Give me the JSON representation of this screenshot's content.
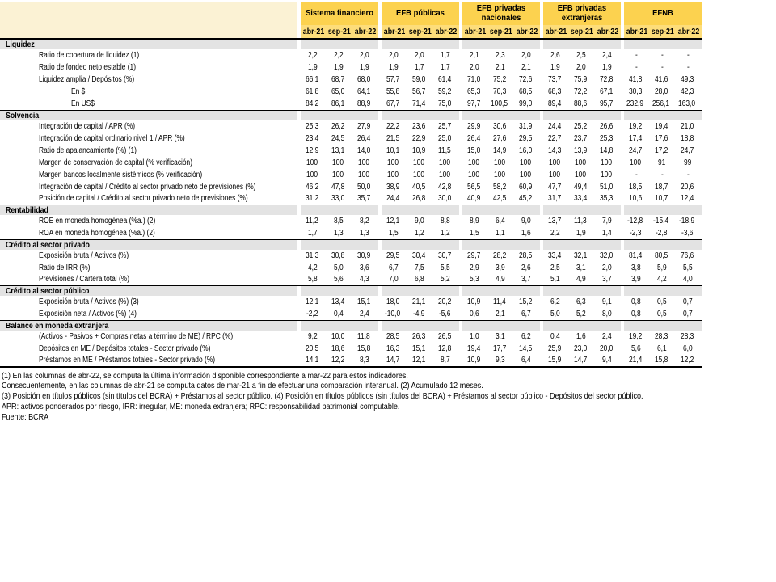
{
  "colors": {
    "header_gold": "#fcd24f",
    "header_gold_light": "#fddd7a",
    "corner_cream": "#fbf2d4",
    "section_gray": "#e3e3e3",
    "border_black": "#000000"
  },
  "table": {
    "groups": [
      {
        "label": "Sistema financiero"
      },
      {
        "label": "EFB públicas"
      },
      {
        "label": "EFB privadas nacionales"
      },
      {
        "label": "EFB privadas extranjeras"
      },
      {
        "label": "EFNB"
      }
    ],
    "periods": [
      "abr-21",
      "sep-21",
      "abr-22"
    ],
    "sections": [
      {
        "title": "Liquidez",
        "rows": [
          {
            "label": "Ratio de cobertura de liquidez (1)",
            "indent": 1,
            "values": [
              "2,2",
              "2,2",
              "2,0",
              "2,0",
              "2,0",
              "1,7",
              "2,1",
              "2,3",
              "2,0",
              "2,6",
              "2,5",
              "2,4",
              "-",
              "-",
              "-"
            ]
          },
          {
            "label": "Ratio de fondeo neto estable (1)",
            "indent": 1,
            "values": [
              "1,9",
              "1,9",
              "1,9",
              "1,9",
              "1,7",
              "1,7",
              "2,0",
              "2,1",
              "2,1",
              "1,9",
              "2,0",
              "1,9",
              "-",
              "-",
              "-"
            ]
          },
          {
            "label": "Liquidez amplia / Depósitos (%)",
            "indent": 1,
            "values": [
              "66,1",
              "68,7",
              "68,0",
              "57,7",
              "59,0",
              "61,4",
              "71,0",
              "75,2",
              "72,6",
              "73,7",
              "75,9",
              "72,8",
              "41,8",
              "41,6",
              "49,3"
            ]
          },
          {
            "label": "En $",
            "indent": 2,
            "values": [
              "61,8",
              "65,0",
              "64,1",
              "55,8",
              "56,7",
              "59,2",
              "65,3",
              "70,3",
              "68,5",
              "68,3",
              "72,2",
              "67,1",
              "30,3",
              "28,0",
              "42,3"
            ]
          },
          {
            "label": "En US$",
            "indent": 2,
            "values": [
              "84,2",
              "86,1",
              "88,9",
              "67,7",
              "71,4",
              "75,0",
              "97,7",
              "100,5",
              "99,0",
              "89,4",
              "88,6",
              "95,7",
              "232,9",
              "256,1",
              "163,0"
            ]
          }
        ]
      },
      {
        "title": "Solvencia",
        "rows": [
          {
            "label": "Integración de capital / APR (%)",
            "indent": 1,
            "values": [
              "25,3",
              "26,2",
              "27,9",
              "22,2",
              "23,6",
              "25,7",
              "29,9",
              "30,6",
              "31,9",
              "24,4",
              "25,2",
              "26,6",
              "19,2",
              "19,4",
              "21,0"
            ]
          },
          {
            "label": "Integración de capital ordinario nivel 1 / APR (%)",
            "indent": 1,
            "values": [
              "23,4",
              "24,5",
              "26,4",
              "21,5",
              "22,9",
              "25,0",
              "26,4",
              "27,6",
              "29,5",
              "22,7",
              "23,7",
              "25,3",
              "17,4",
              "17,6",
              "18,8"
            ]
          },
          {
            "label": "Ratio de apalancamiento (%) (1)",
            "indent": 1,
            "values": [
              "12,9",
              "13,1",
              "14,0",
              "10,1",
              "10,9",
              "11,5",
              "15,0",
              "14,9",
              "16,0",
              "14,3",
              "13,9",
              "14,8",
              "24,7",
              "17,2",
              "24,7"
            ]
          },
          {
            "label": "Margen de conservación de capital (% verificación)",
            "indent": 1,
            "values": [
              "100",
              "100",
              "100",
              "100",
              "100",
              "100",
              "100",
              "100",
              "100",
              "100",
              "100",
              "100",
              "100",
              "91",
              "99"
            ]
          },
          {
            "label": "Margen bancos localmente sistémicos (% verificación)",
            "indent": 1,
            "values": [
              "100",
              "100",
              "100",
              "100",
              "100",
              "100",
              "100",
              "100",
              "100",
              "100",
              "100",
              "100",
              "-",
              "-",
              "-"
            ]
          },
          {
            "label": "Integración de capital / Crédito al sector privado neto de previsiones (%)",
            "indent": 1,
            "values": [
              "46,2",
              "47,8",
              "50,0",
              "38,9",
              "40,5",
              "42,8",
              "56,5",
              "58,2",
              "60,9",
              "47,7",
              "49,4",
              "51,0",
              "18,5",
              "18,7",
              "20,6"
            ]
          },
          {
            "label": "Posición de capital / Crédito al sector privado neto de previsiones (%)",
            "indent": 1,
            "values": [
              "31,2",
              "33,0",
              "35,7",
              "24,4",
              "26,8",
              "30,0",
              "40,9",
              "42,5",
              "45,2",
              "31,7",
              "33,4",
              "35,3",
              "10,6",
              "10,7",
              "12,4"
            ]
          }
        ]
      },
      {
        "title": "Rentabilidad",
        "rows": [
          {
            "label": "ROE en moneda homogénea (%a.) (2)",
            "indent": 1,
            "values": [
              "11,2",
              "8,5",
              "8,2",
              "12,1",
              "9,0",
              "8,8",
              "8,9",
              "6,4",
              "9,0",
              "13,7",
              "11,3",
              "7,9",
              "-12,8",
              "-15,4",
              "-18,9"
            ]
          },
          {
            "label": "ROA en moneda homogénea (%a.) (2)",
            "indent": 1,
            "values": [
              "1,7",
              "1,3",
              "1,3",
              "1,5",
              "1,2",
              "1,2",
              "1,5",
              "1,1",
              "1,6",
              "2,2",
              "1,9",
              "1,4",
              "-2,3",
              "-2,8",
              "-3,6"
            ]
          }
        ]
      },
      {
        "title": "Crédito al sector privado",
        "rows": [
          {
            "label": "Exposición bruta / Activos (%)",
            "indent": 1,
            "values": [
              "31,3",
              "30,8",
              "30,9",
              "29,5",
              "30,4",
              "30,7",
              "29,7",
              "28,2",
              "28,5",
              "33,4",
              "32,1",
              "32,0",
              "81,4",
              "80,5",
              "76,6"
            ]
          },
          {
            "label": "Ratio de IRR (%)",
            "indent": 1,
            "values": [
              "4,2",
              "5,0",
              "3,6",
              "6,7",
              "7,5",
              "5,5",
              "2,9",
              "3,9",
              "2,6",
              "2,5",
              "3,1",
              "2,0",
              "3,8",
              "5,9",
              "5,5"
            ]
          },
          {
            "label": "Previsiones / Cartera total (%)",
            "indent": 1,
            "values": [
              "5,8",
              "5,6",
              "4,3",
              "7,0",
              "6,8",
              "5,2",
              "5,3",
              "4,9",
              "3,7",
              "5,1",
              "4,9",
              "3,7",
              "3,9",
              "4,2",
              "4,0"
            ]
          }
        ]
      },
      {
        "title": "Crédito al sector público",
        "rows": [
          {
            "label": "Exposición bruta / Activos (%) (3)",
            "indent": 1,
            "values": [
              "12,1",
              "13,4",
              "15,1",
              "18,0",
              "21,1",
              "20,2",
              "10,9",
              "11,4",
              "15,2",
              "6,2",
              "6,3",
              "9,1",
              "0,8",
              "0,5",
              "0,7"
            ]
          },
          {
            "label": "Exposición neta / Activos (%) (4)",
            "indent": 1,
            "values": [
              "-2,2",
              "0,4",
              "2,4",
              "-10,0",
              "-4,9",
              "-5,6",
              "0,6",
              "2,1",
              "6,7",
              "5,0",
              "5,2",
              "8,0",
              "0,8",
              "0,5",
              "0,7"
            ]
          }
        ]
      },
      {
        "title": "Balance en moneda extranjera",
        "rows": [
          {
            "label": "(Activos - Pasivos +  Compras netas a término de ME) / RPC (%)",
            "indent": 1,
            "values": [
              "9,2",
              "10,0",
              "11,8",
              "28,5",
              "26,3",
              "26,5",
              "1,0",
              "3,1",
              "6,2",
              "0,4",
              "1,6",
              "2,4",
              "19,2",
              "28,3",
              "28,3"
            ]
          },
          {
            "label": "Depósitos en ME / Depósitos totales - Sector privado (%)",
            "indent": 1,
            "values": [
              "20,5",
              "18,6",
              "15,8",
              "16,3",
              "15,1",
              "12,8",
              "19,4",
              "17,7",
              "14,5",
              "25,9",
              "23,0",
              "20,0",
              "5,6",
              "6,1",
              "6,0"
            ]
          },
          {
            "label": "Préstamos en ME / Préstamos totales - Sector privado (%)",
            "indent": 1,
            "values": [
              "14,1",
              "12,2",
              "8,3",
              "14,7",
              "12,1",
              "8,7",
              "10,9",
              "9,3",
              "6,4",
              "15,9",
              "14,7",
              "9,4",
              "21,4",
              "15,8",
              "12,2"
            ]
          }
        ]
      }
    ]
  },
  "footnotes": {
    "lines": [
      "(1) En las columnas de abr-22, se computa la última información disponible correspondiente a mar-22 para estos indicadores.",
      "Consecuentemente, en las columnas de abr-21 se computa datos de mar-21 a fin de efectuar una comparación interanual. (2) Acumulado 12 meses.",
      "(3) Posición en títulos públicos (sin títulos del BCRA) + Préstamos al sector público. (4) Posición en títulos públicos (sin títulos del BCRA) + Préstamos al sector público - Depósitos del sector público.",
      "APR: activos ponderados por riesgo, IRR: irregular, ME: moneda extranjera; RPC: responsabilidad patrimonial computable.",
      "Fuente: BCRA"
    ]
  }
}
